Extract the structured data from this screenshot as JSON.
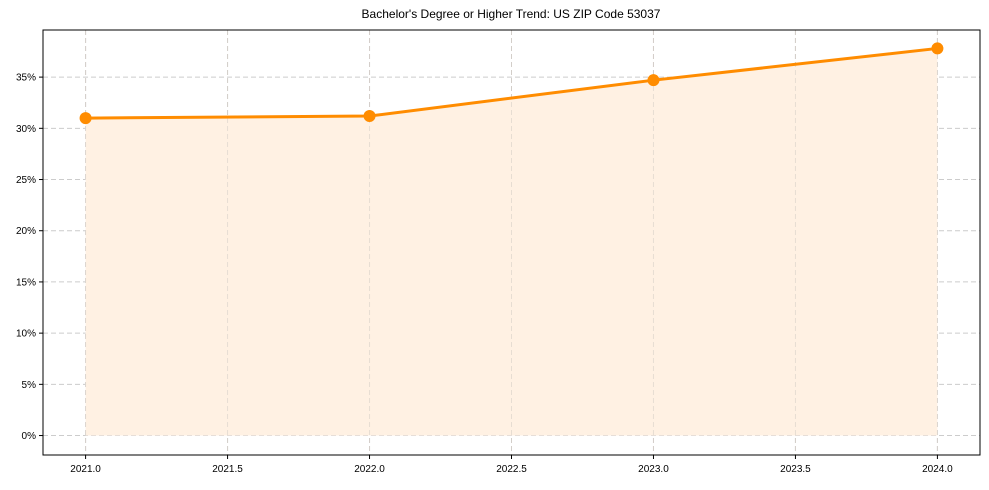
{
  "chart_data": {
    "type": "line",
    "title": "Bachelor's Degree or Higher Trend: US ZIP Code 53037",
    "xlabel": "",
    "ylabel": "",
    "x": [
      2021,
      2022,
      2023,
      2024
    ],
    "series": [
      {
        "name": "Bachelor's Degree or Higher",
        "values": [
          31.0,
          31.2,
          34.7,
          37.8
        ],
        "color": "#ff8c00",
        "fill": "#fff1e3",
        "marker": "circle"
      }
    ],
    "x_ticks": [
      "2021.0",
      "2021.5",
      "2022.0",
      "2022.5",
      "2023.0",
      "2023.5",
      "2024.0"
    ],
    "y_ticks": [
      "0%",
      "5%",
      "10%",
      "15%",
      "20%",
      "25%",
      "30%",
      "35%"
    ],
    "xlim": [
      2020.85,
      2024.15
    ],
    "ylim": [
      -1.9,
      39.6
    ],
    "grid": true,
    "grid_style": "dashed",
    "legend": false
  }
}
